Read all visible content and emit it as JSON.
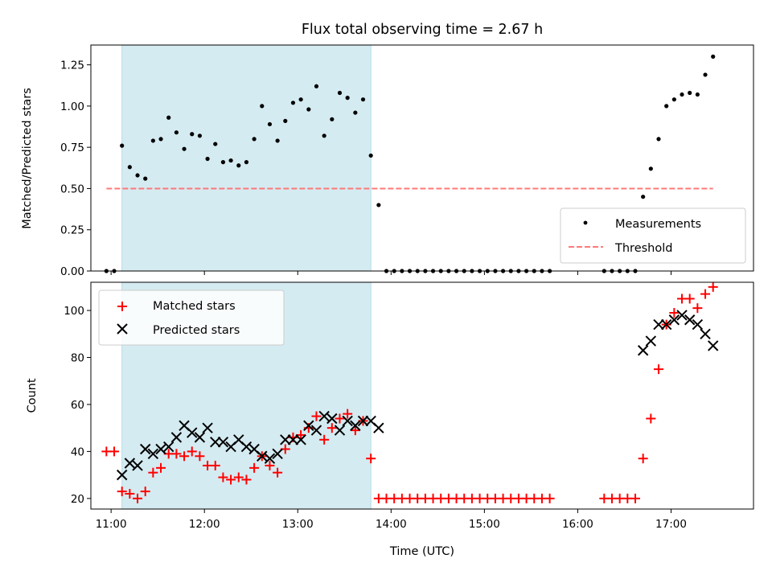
{
  "chart_data": [
    {
      "type": "scatter",
      "title": "Flux total observing time = 2.67 h",
      "xlabel": "",
      "ylabel": "Matched/Predicted stars",
      "xlim": [
        "10:47",
        "17:53"
      ],
      "ylim": [
        0.0,
        1.37
      ],
      "yticks": [
        "0.00",
        "0.25",
        "0.50",
        "0.75",
        "1.00",
        "1.25"
      ],
      "shaded_interval": [
        "11:07",
        "13:47"
      ],
      "shade_color": "#d4ebf1",
      "legend_position": "lower right",
      "series": [
        {
          "name": "Measurements",
          "marker": "dot",
          "color": "#000000",
          "x": [
            "10:57",
            "11:02",
            "11:07",
            "11:12",
            "11:17",
            "11:22",
            "11:27",
            "11:32",
            "11:37",
            "11:42",
            "11:47",
            "11:52",
            "11:57",
            "12:02",
            "12:07",
            "12:12",
            "12:17",
            "12:22",
            "12:27",
            "12:32",
            "12:37",
            "12:42",
            "12:47",
            "12:52",
            "12:57",
            "13:02",
            "13:07",
            "13:12",
            "13:17",
            "13:22",
            "13:27",
            "13:32",
            "13:37",
            "13:42",
            "13:47",
            "13:52",
            "13:57",
            "14:02",
            "14:07",
            "14:12",
            "14:17",
            "14:22",
            "14:27",
            "14:32",
            "14:37",
            "14:42",
            "14:47",
            "14:52",
            "14:57",
            "15:02",
            "15:07",
            "15:12",
            "15:17",
            "15:22",
            "15:27",
            "15:32",
            "15:37",
            "15:42",
            "16:17",
            "16:22",
            "16:27",
            "16:32",
            "16:37",
            "16:42",
            "16:47",
            "16:52",
            "16:57",
            "17:02",
            "17:07",
            "17:12",
            "17:17",
            "17:22",
            "17:27"
          ],
          "values": [
            0.0,
            0.0,
            0.76,
            0.63,
            0.58,
            0.56,
            0.79,
            0.8,
            0.93,
            0.84,
            0.74,
            0.83,
            0.82,
            0.68,
            0.77,
            0.66,
            0.67,
            0.64,
            0.66,
            0.8,
            1.0,
            0.89,
            0.79,
            0.91,
            1.02,
            1.04,
            0.98,
            1.12,
            0.82,
            0.92,
            1.08,
            1.05,
            0.96,
            1.04,
            0.7,
            0.4,
            0.0,
            0.0,
            0.0,
            0.0,
            0.0,
            0.0,
            0.0,
            0.0,
            0.0,
            0.0,
            0.0,
            0.0,
            0.0,
            0.0,
            0.0,
            0.0,
            0.0,
            0.0,
            0.0,
            0.0,
            0.0,
            0.0,
            0.0,
            0.0,
            0.0,
            0.0,
            0.0,
            0.45,
            0.62,
            0.8,
            1.0,
            1.04,
            1.07,
            1.08,
            1.07,
            1.19,
            1.3
          ]
        },
        {
          "name": "Threshold",
          "style": "dashed",
          "color": "#ff6b6b",
          "x": [
            "10:57",
            "17:27"
          ],
          "values": [
            0.5,
            0.5
          ]
        }
      ]
    },
    {
      "type": "scatter",
      "title": "",
      "xlabel": "Time (UTC)",
      "ylabel": "Count",
      "xlim": [
        "10:47",
        "17:53"
      ],
      "ylim": [
        15.5,
        112
      ],
      "yticks": [
        "20",
        "40",
        "60",
        "80",
        "100"
      ],
      "xticks": [
        "11:00",
        "12:00",
        "13:00",
        "14:00",
        "15:00",
        "16:00",
        "17:00"
      ],
      "shaded_interval": [
        "11:07",
        "13:47"
      ],
      "legend_position": "upper left",
      "series": [
        {
          "name": "Matched stars",
          "marker": "plus",
          "color": "#ff0000",
          "x": [
            "10:57",
            "11:02",
            "11:07",
            "11:12",
            "11:17",
            "11:22",
            "11:27",
            "11:32",
            "11:37",
            "11:42",
            "11:47",
            "11:52",
            "11:57",
            "12:02",
            "12:07",
            "12:12",
            "12:17",
            "12:22",
            "12:27",
            "12:32",
            "12:37",
            "12:42",
            "12:47",
            "12:52",
            "12:57",
            "13:02",
            "13:07",
            "13:12",
            "13:17",
            "13:22",
            "13:27",
            "13:32",
            "13:37",
            "13:42",
            "13:47",
            "13:52",
            "13:57",
            "14:02",
            "14:07",
            "14:12",
            "14:17",
            "14:22",
            "14:27",
            "14:32",
            "14:37",
            "14:42",
            "14:47",
            "14:52",
            "14:57",
            "15:02",
            "15:07",
            "15:12",
            "15:17",
            "15:22",
            "15:27",
            "15:32",
            "15:37",
            "15:42",
            "16:17",
            "16:22",
            "16:27",
            "16:32",
            "16:37",
            "16:42",
            "16:47",
            "16:52",
            "16:57",
            "17:02",
            "17:07",
            "17:12",
            "17:17",
            "17:22",
            "17:27"
          ],
          "values": [
            40,
            40,
            23,
            22,
            20,
            23,
            31,
            33,
            39,
            39,
            38,
            40,
            38,
            34,
            34,
            29,
            28,
            29,
            28,
            33,
            38,
            34,
            31,
            41,
            46,
            47,
            50,
            55,
            45,
            50,
            54,
            56,
            49,
            53,
            37,
            20,
            20,
            20,
            20,
            20,
            20,
            20,
            20,
            20,
            20,
            20,
            20,
            20,
            20,
            20,
            20,
            20,
            20,
            20,
            20,
            20,
            20,
            20,
            20,
            20,
            20,
            20,
            20,
            37,
            54,
            75,
            94,
            99,
            105,
            105,
            101,
            107,
            110
          ]
        },
        {
          "name": "Predicted stars",
          "marker": "x",
          "color": "#000000",
          "x": [
            "11:07",
            "11:12",
            "11:17",
            "11:22",
            "11:27",
            "11:32",
            "11:37",
            "11:42",
            "11:47",
            "11:52",
            "11:57",
            "12:02",
            "12:07",
            "12:12",
            "12:17",
            "12:22",
            "12:27",
            "12:32",
            "12:37",
            "12:42",
            "12:47",
            "12:52",
            "12:57",
            "13:02",
            "13:07",
            "13:12",
            "13:17",
            "13:22",
            "13:27",
            "13:32",
            "13:37",
            "13:42",
            "13:47",
            "13:52",
            "16:42",
            "16:47",
            "16:52",
            "16:57",
            "17:02",
            "17:07",
            "17:12",
            "17:17",
            "17:22",
            "17:27"
          ],
          "values": [
            30,
            35,
            34,
            41,
            39,
            41,
            42,
            46,
            51,
            48,
            46,
            50,
            44,
            44,
            42,
            45,
            42,
            41,
            38,
            37,
            39,
            45,
            45,
            45,
            51,
            49,
            55,
            54,
            49,
            53,
            51,
            53,
            53,
            50,
            83,
            87,
            94,
            94,
            96,
            98,
            96,
            94,
            90,
            85
          ]
        }
      ]
    }
  ]
}
